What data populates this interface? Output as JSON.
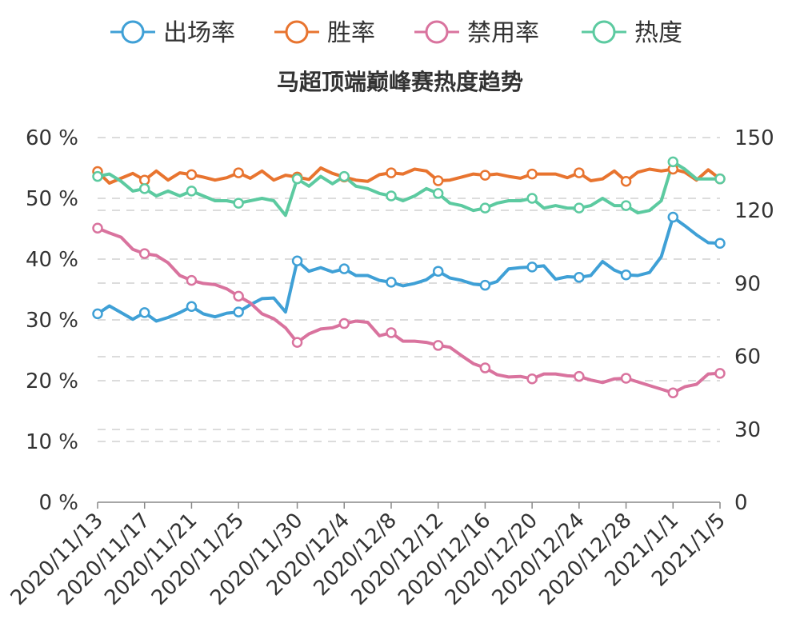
{
  "chart_data": {
    "type": "line",
    "title": "马超顶端巅峰赛热度趋势",
    "categories": [
      "2020/11/13",
      "2020/11/14",
      "2020/11/15",
      "2020/11/16",
      "2020/11/17",
      "2020/11/18",
      "2020/11/19",
      "2020/11/20",
      "2020/11/21",
      "2020/11/22",
      "2020/11/23",
      "2020/11/24",
      "2020/11/25",
      "2020/11/26",
      "2020/11/27",
      "2020/11/28",
      "2020/11/29",
      "2020/11/30",
      "2020/12/1",
      "2020/12/2",
      "2020/12/3",
      "2020/12/4",
      "2020/12/5",
      "2020/12/6",
      "2020/12/7",
      "2020/12/8",
      "2020/12/9",
      "2020/12/10",
      "2020/12/11",
      "2020/12/12",
      "2020/12/13",
      "2020/12/14",
      "2020/12/15",
      "2020/12/16",
      "2020/12/17",
      "2020/12/18",
      "2020/12/19",
      "2020/12/20",
      "2020/12/21",
      "2020/12/22",
      "2020/12/23",
      "2020/12/24",
      "2020/12/25",
      "2020/12/26",
      "2020/12/27",
      "2020/12/28",
      "2020/12/29",
      "2020/12/30",
      "2020/12/31",
      "2021/1/1",
      "2021/1/2",
      "2021/1/3",
      "2021/1/4",
      "2021/1/5"
    ],
    "x_tick_labels": [
      "2020/11/13",
      "2020/11/17",
      "2020/11/21",
      "2020/11/25",
      "2020/11/30",
      "2020/12/4",
      "2020/12/8",
      "2020/12/12",
      "2020/12/16",
      "2020/12/20",
      "2020/12/24",
      "2020/12/28",
      "2021/1/1",
      "2021/1/5"
    ],
    "x_tick_indices": [
      0,
      4,
      8,
      12,
      17,
      21,
      25,
      29,
      33,
      37,
      41,
      45,
      49,
      53
    ],
    "y_left": {
      "ticks": [
        "0 %",
        "10 %",
        "20 %",
        "30 %",
        "40 %",
        "50 %",
        "60 %"
      ],
      "range": [
        0,
        60
      ]
    },
    "y_right": {
      "ticks": [
        "0",
        "30",
        "60",
        "90",
        "120",
        "150"
      ],
      "range": [
        0,
        150
      ]
    },
    "grid": true,
    "legend_position": "top",
    "series": [
      {
        "name": "出场率",
        "axis": "left",
        "color": "#3fa0d6",
        "marker_indices": [
          0,
          4,
          8,
          12,
          17,
          21,
          25,
          29,
          33,
          37,
          41,
          45,
          49,
          53
        ],
        "values": [
          31.0,
          32.3,
          31.2,
          30.1,
          31.2,
          29.8,
          30.4,
          31.2,
          32.2,
          31.0,
          30.5,
          31.1,
          31.3,
          32.5,
          33.5,
          33.6,
          31.3,
          39.7,
          38.0,
          38.6,
          37.9,
          38.4,
          37.3,
          37.3,
          36.5,
          36.2,
          35.6,
          36.0,
          36.6,
          38.0,
          36.9,
          36.5,
          35.9,
          35.7,
          36.3,
          38.4,
          38.6,
          38.7,
          38.9,
          36.7,
          37.1,
          37.0,
          37.3,
          39.6,
          38.2,
          37.4,
          37.3,
          37.8,
          40.4,
          46.9,
          45.5,
          44.0,
          42.7,
          42.6
        ]
      },
      {
        "name": "胜率",
        "axis": "left",
        "color": "#e8742f",
        "marker_indices": [
          0,
          4,
          8,
          12,
          17,
          21,
          25,
          29,
          33,
          37,
          41,
          45,
          49,
          53
        ],
        "values": [
          54.4,
          52.5,
          53.3,
          54.1,
          53.0,
          54.5,
          53.0,
          54.2,
          53.9,
          53.5,
          53.0,
          53.4,
          54.2,
          53.3,
          54.5,
          53.0,
          53.8,
          53.5,
          53.1,
          55.0,
          54.1,
          53.5,
          53.0,
          52.8,
          53.9,
          54.2,
          54.0,
          54.8,
          54.5,
          52.9,
          53.0,
          53.5,
          54.0,
          53.8,
          54.0,
          53.6,
          53.3,
          54.0,
          54.0,
          54.0,
          53.4,
          54.2,
          52.9,
          53.2,
          54.5,
          52.8,
          54.3,
          54.8,
          54.5,
          54.8,
          54.3,
          53.0,
          54.7,
          53.2
        ]
      },
      {
        "name": "禁用率",
        "axis": "left",
        "color": "#d9739e",
        "marker_indices": [
          0,
          4,
          8,
          12,
          17,
          21,
          25,
          29,
          33,
          37,
          41,
          45,
          49,
          53
        ],
        "values": [
          45.1,
          44.3,
          43.6,
          41.6,
          40.9,
          40.6,
          39.4,
          37.3,
          36.5,
          36.0,
          35.8,
          35.1,
          33.9,
          32.8,
          31.0,
          30.2,
          28.7,
          26.3,
          27.7,
          28.5,
          28.7,
          29.4,
          29.8,
          29.6,
          27.4,
          27.9,
          26.5,
          26.5,
          26.3,
          25.8,
          25.5,
          24.1,
          22.8,
          22.1,
          21.0,
          20.6,
          20.7,
          20.3,
          21.1,
          21.1,
          20.8,
          20.7,
          20.1,
          19.7,
          20.3,
          20.4,
          19.8,
          19.2,
          18.6,
          18.0,
          19.0,
          19.4,
          21.1,
          21.2
        ]
      },
      {
        "name": "热度",
        "axis": "right",
        "color": "#5ccaa0",
        "marker_indices": [
          0,
          4,
          8,
          12,
          17,
          21,
          25,
          29,
          33,
          37,
          41,
          45,
          49,
          53
        ],
        "values": [
          134,
          135,
          132,
          128,
          129,
          126,
          128,
          126,
          128,
          126,
          124,
          124,
          123,
          124,
          125,
          124,
          118,
          133,
          130,
          134,
          131,
          134,
          130,
          129,
          127,
          126,
          124,
          126,
          129,
          127,
          123,
          122,
          120,
          121,
          123,
          124,
          124,
          125,
          121,
          122,
          121,
          121,
          122,
          125,
          122,
          122,
          119,
          120,
          124,
          140,
          137,
          133,
          133,
          133
        ]
      }
    ]
  }
}
